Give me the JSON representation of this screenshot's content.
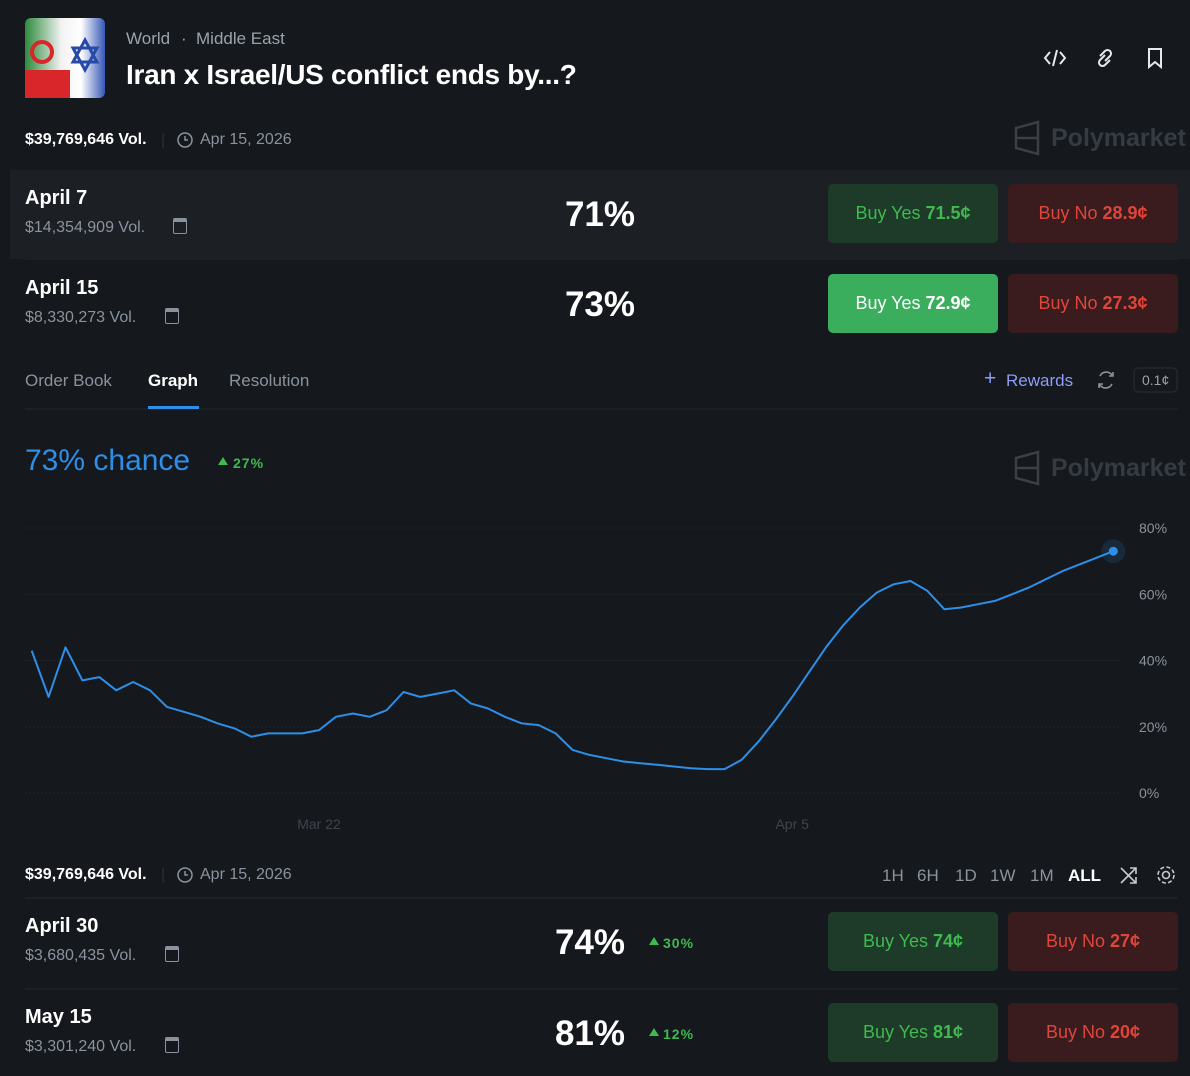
{
  "header": {
    "breadcrumb": [
      "World",
      "Middle East"
    ],
    "title": "Iran x Israel/US conflict ends by...?",
    "volume": "$39,769,646 Vol.",
    "date": "Apr 15, 2026",
    "brand": "Polymarket"
  },
  "markets": [
    {
      "date": "April 7",
      "volume": "$14,354,909 Vol.",
      "chance": "71%",
      "yes_label": "Buy Yes",
      "yes_price": "71.5¢",
      "no_label": "Buy No",
      "no_price": "28.9¢"
    },
    {
      "date": "April 15",
      "volume": "$8,330,273 Vol.",
      "chance": "73%",
      "yes_label": "Buy Yes",
      "yes_price": "72.9¢",
      "no_label": "Buy No",
      "no_price": "27.3¢"
    },
    {
      "date": "April 30",
      "volume": "$3,680,435 Vol.",
      "chance": "74%",
      "change": "30%",
      "yes_label": "Buy Yes",
      "yes_price": "74¢",
      "no_label": "Buy No",
      "no_price": "27¢"
    },
    {
      "date": "May 15",
      "volume": "$3,301,240 Vol.",
      "chance": "81%",
      "change": "12%",
      "yes_label": "Buy Yes",
      "yes_price": "81¢",
      "no_label": "Buy No",
      "no_price": "20¢"
    }
  ],
  "tabs": {
    "items": [
      "Order Book",
      "Graph",
      "Resolution"
    ],
    "rewards": "Rewards",
    "tick_size": "0.1¢"
  },
  "chart_data": {
    "type": "line",
    "title": "73% chance",
    "change": "27%",
    "brand": "Polymarket",
    "color": "#2d8fe8",
    "categories": [
      null,
      null,
      null,
      null,
      null,
      null,
      null,
      null,
      null,
      null,
      null,
      null,
      null,
      null,
      null,
      null,
      null,
      "Mar 22",
      null,
      null,
      null,
      null,
      null,
      null,
      null,
      null,
      null,
      null,
      null,
      null,
      null,
      null,
      null,
      null,
      null,
      null,
      null,
      null,
      null,
      null,
      null,
      null,
      null,
      null,
      null,
      "Apr 5",
      null,
      null,
      null,
      null,
      null,
      null,
      null,
      null,
      null,
      null,
      null,
      null,
      null,
      null,
      null,
      null,
      null,
      null,
      null
    ],
    "values": [
      43,
      29,
      44,
      34,
      35,
      31,
      33.5,
      31,
      26,
      24.5,
      23,
      21,
      19.5,
      17,
      18,
      18,
      18,
      19,
      23,
      24,
      23,
      25,
      30.5,
      29,
      30,
      31,
      27,
      25.5,
      23,
      21,
      20.5,
      18,
      13,
      11.5,
      10.5,
      9.5,
      9,
      8.5,
      8,
      7.5,
      7.2,
      7.2,
      10,
      15.5,
      22,
      29,
      36.5,
      44,
      50.5,
      56,
      60.5,
      63,
      64,
      61,
      55.5,
      56,
      57,
      58,
      60,
      62,
      64.5,
      67,
      69,
      71,
      73
    ],
    "ylim": [
      0,
      80
    ],
    "yticks": [
      {
        "value": 0,
        "label": "0%"
      },
      {
        "value": 20,
        "label": "20%"
      },
      {
        "value": 40,
        "label": "40%"
      },
      {
        "value": 60,
        "label": "60%"
      },
      {
        "value": 80,
        "label": "80%"
      }
    ],
    "grid": true
  },
  "footer": {
    "volume": "$39,769,646 Vol.",
    "date": "Apr 15, 2026",
    "ranges": [
      "1H",
      "6H",
      "1D",
      "1W",
      "1M",
      "ALL"
    ],
    "active_range": "ALL"
  }
}
